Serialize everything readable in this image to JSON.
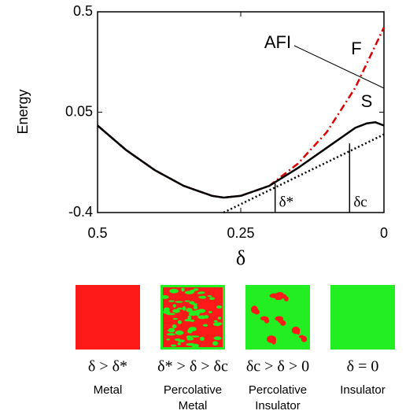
{
  "chart_data": {
    "type": "line",
    "x_label": "δ",
    "y_label": "Energy",
    "xlim": [
      0.5,
      0
    ],
    "ylim": [
      -0.4,
      0.5
    ],
    "xticks": [
      0.5,
      0.25,
      0
    ],
    "yticks": [
      -0.4,
      0.05,
      0.5
    ],
    "series": [
      {
        "color": "#dd0000",
        "style": "dashdot",
        "x": [
          0.5,
          0.45,
          0.4,
          0.35,
          0.3,
          0.28,
          0.25,
          0.2,
          0.15,
          0.1,
          0.05,
          0
        ],
        "values": [
          -0.01,
          -0.12,
          -0.21,
          -0.28,
          -0.325,
          -0.333,
          -0.325,
          -0.28,
          -0.18,
          -0.04,
          0.16,
          0.43
        ]
      },
      {
        "color": "#000000",
        "style": "solid",
        "x": [
          0.5,
          0.45,
          0.4,
          0.35,
          0.3,
          0.28,
          0.25,
          0.2,
          0.15,
          0.1,
          0.05,
          0.03,
          0.015,
          0
        ],
        "values": [
          -0.01,
          -0.12,
          -0.21,
          -0.28,
          -0.325,
          -0.333,
          -0.325,
          -0.28,
          -0.2,
          -0.11,
          -0.02,
          0.0,
          0.005,
          -0.01
        ]
      },
      {
        "color": "#000000",
        "style": "dotted",
        "x": [
          0.28,
          0
        ],
        "values": [
          -0.4,
          -0.05
        ]
      }
    ],
    "annotations": [
      "AFI",
      "F",
      "S"
    ],
    "markers": [
      {
        "label": "δ*",
        "x": 0.19,
        "top": -0.27
      },
      {
        "label": "δc",
        "x": 0.06,
        "top": -0.09
      }
    ]
  },
  "panels": [
    {
      "condition": "δ > δ*",
      "name": [
        "Metal"
      ]
    },
    {
      "condition": "δ* > δ > δc",
      "name": [
        "Percolative",
        "Metal"
      ]
    },
    {
      "condition": "δc > δ > 0",
      "name": [
        "Percolative",
        "Insulator"
      ]
    },
    {
      "condition": "δ = 0",
      "name": [
        "Insulator"
      ]
    }
  ]
}
